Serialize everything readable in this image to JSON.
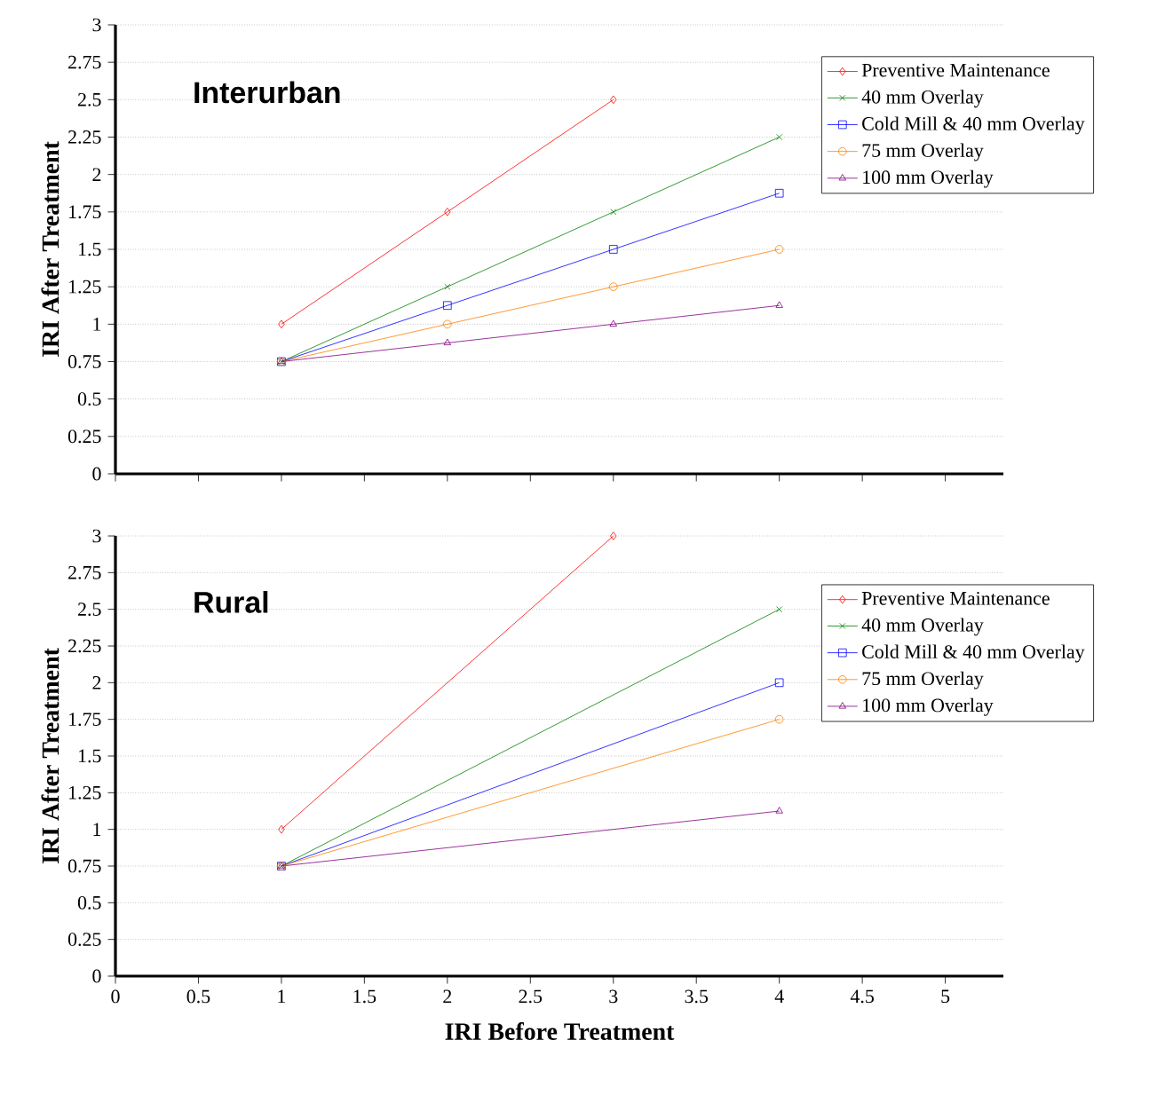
{
  "chart_data": [
    {
      "type": "line",
      "title": "Interurban",
      "ylabel": "IRI After Treatment",
      "xlim": [
        0,
        5.35
      ],
      "xticks": [
        0,
        0.5,
        1,
        1.5,
        2,
        2.5,
        3,
        3.5,
        4,
        4.5,
        5
      ],
      "ylim": [
        0,
        3
      ],
      "yticks": [
        0,
        0.25,
        0.5,
        0.75,
        1,
        1.25,
        1.5,
        1.75,
        2,
        2.25,
        2.5,
        2.75,
        3
      ],
      "grid": "y",
      "legend": "top right",
      "tick_labels": "y",
      "line_style": "solid",
      "series": [
        {
          "name": "Preventive Maintenance",
          "color": "#ff0000",
          "marker": "diamond",
          "x": [
            1,
            2,
            3
          ],
          "values": [
            1,
            1.75,
            2.5
          ]
        },
        {
          "name": "40 mm Overlay",
          "color": "#008000",
          "marker": "cross",
          "x": [
            1,
            2,
            3,
            4
          ],
          "values": [
            0.75,
            1.25,
            1.75,
            2.25
          ]
        },
        {
          "name": "Cold Mill & 40 mm Overlay",
          "color": "#0000ff",
          "marker": "square",
          "x": [
            1,
            2,
            3,
            4
          ],
          "values": [
            0.75,
            1.125,
            1.5,
            1.875
          ]
        },
        {
          "name": "75 mm Overlay",
          "color": "#ff8000",
          "marker": "circle",
          "x": [
            1,
            2,
            3,
            4
          ],
          "values": [
            0.75,
            1,
            1.25,
            1.5
          ]
        },
        {
          "name": "100 mm Overlay",
          "color": "#800080",
          "marker": "triangle",
          "x": [
            1,
            2,
            3,
            4
          ],
          "values": [
            0.75,
            0.875,
            1,
            1.125
          ]
        }
      ]
    },
    {
      "type": "line",
      "title": "Rural",
      "xlabel": "IRI Before Treatment",
      "ylabel": "IRI After Treatment",
      "xlim": [
        0,
        5.35
      ],
      "xticks": [
        0,
        0.5,
        1,
        1.5,
        2,
        2.5,
        3,
        3.5,
        4,
        4.5,
        5
      ],
      "ylim": [
        0,
        3
      ],
      "yticks": [
        0,
        0.25,
        0.5,
        0.75,
        1,
        1.25,
        1.5,
        1.75,
        2,
        2.25,
        2.5,
        2.75,
        3
      ],
      "grid": "y",
      "legend": "top right",
      "line_style": "solid",
      "series": [
        {
          "name": "Preventive Maintenance",
          "color": "#ff0000",
          "marker": "diamond",
          "x": [
            1,
            3
          ],
          "values": [
            1,
            3
          ]
        },
        {
          "name": "40 mm Overlay",
          "color": "#008000",
          "marker": "cross",
          "x": [
            1,
            4
          ],
          "values": [
            0.75,
            2.5
          ]
        },
        {
          "name": "Cold Mill & 40 mm Overlay",
          "color": "#0000ff",
          "marker": "square",
          "x": [
            1,
            4
          ],
          "values": [
            0.75,
            2
          ]
        },
        {
          "name": "75 mm Overlay",
          "color": "#ff8000",
          "marker": "circle",
          "x": [
            1,
            4
          ],
          "values": [
            0.75,
            1.75
          ]
        },
        {
          "name": "100 mm Overlay",
          "color": "#800080",
          "marker": "triangle",
          "x": [
            1,
            4
          ],
          "values": [
            0.75,
            1.125
          ]
        }
      ]
    }
  ]
}
